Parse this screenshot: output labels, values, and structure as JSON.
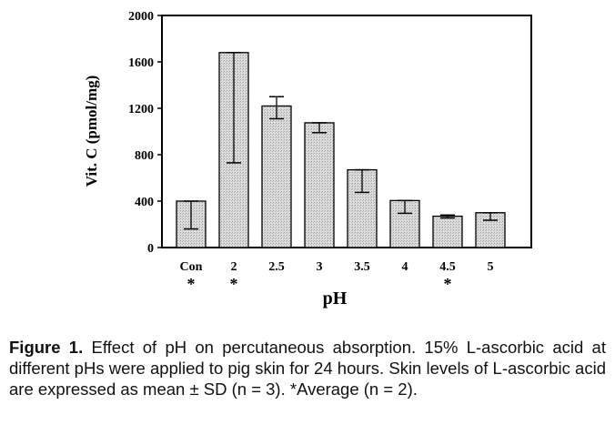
{
  "chart_data": {
    "type": "bar",
    "xlabel": "pH",
    "ylabel": "Vit. C (pmol/mg)",
    "ylim": [
      0,
      2000
    ],
    "yticks": [
      "0",
      "400",
      "800",
      "1200",
      "1600",
      "2000"
    ],
    "categories": [
      "Con",
      "2",
      "2.5",
      "3",
      "3.5",
      "4",
      "4.5",
      "5"
    ],
    "values": [
      400,
      1680,
      1220,
      1075,
      670,
      405,
      270,
      300
    ],
    "error_low": [
      160,
      730,
      1110,
      990,
      475,
      295,
      255,
      235
    ],
    "error_high": [
      400,
      1680,
      1300,
      1075,
      670,
      405,
      280,
      300
    ],
    "markers": [
      "*",
      "*",
      "",
      "",
      "",
      "",
      "*",
      ""
    ],
    "grid": false,
    "bar_color": "#d9d9d9"
  },
  "caption": {
    "label": "Figure 1.",
    "text": " Effect of pH on percutaneous absorption. 15% L-ascorbic acid at different pHs were applied to pig skin for 24 hours. Skin levels of L-ascorbic acid are expressed as mean ± SD (n = 3). *Average (n = 2)."
  }
}
